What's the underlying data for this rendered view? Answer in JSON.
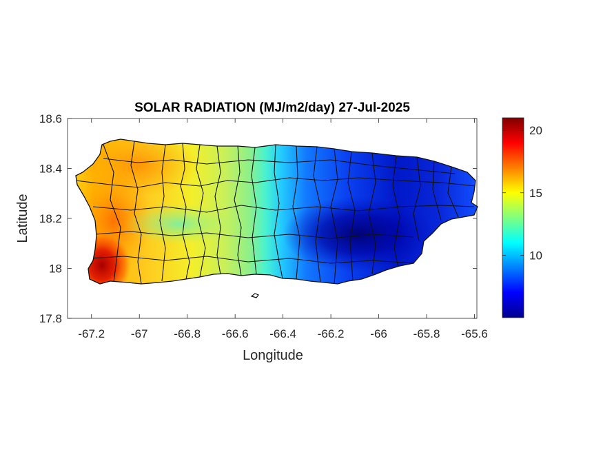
{
  "chart_data": {
    "type": "heatmap",
    "title": "SOLAR RADIATION (MJ/m2/day) 27-Jul-2025",
    "xlabel": "Longitude",
    "ylabel": "Latitude",
    "xlim": [
      -67.3,
      -65.59
    ],
    "ylim": [
      17.8,
      18.6
    ],
    "xticks": [
      -67.2,
      -67,
      -66.8,
      -66.6,
      -66.4,
      -66.2,
      -66,
      -65.8,
      -65.6
    ],
    "xtick_labels": [
      "-67.2",
      "-67",
      "-66.8",
      "-66.6",
      "-66.4",
      "-66.2",
      "-66",
      "-65.8",
      "-65.6"
    ],
    "yticks": [
      17.8,
      18,
      18.2,
      18.4,
      18.6
    ],
    "ytick_labels": [
      "17.8",
      "18",
      "18.2",
      "18.4",
      "18.6"
    ],
    "colorbar": {
      "colormap": "jet",
      "range": [
        5,
        21
      ],
      "ticks": [
        10,
        15,
        20
      ],
      "tick_labels": [
        "10",
        "15",
        "20"
      ],
      "placement": "right"
    },
    "field_samples": [
      {
        "lon": -67.22,
        "lat": 17.97,
        "value": 21
      },
      {
        "lon": -67.19,
        "lat": 18.1,
        "value": 19
      },
      {
        "lon": -67.1,
        "lat": 18.45,
        "value": 17
      },
      {
        "lon": -66.95,
        "lat": 18.4,
        "value": 15.5
      },
      {
        "lon": -66.85,
        "lat": 18.15,
        "value": 14
      },
      {
        "lon": -66.6,
        "lat": 18.3,
        "value": 12.5
      },
      {
        "lon": -66.45,
        "lat": 18.2,
        "value": 9
      },
      {
        "lon": -66.2,
        "lat": 18.2,
        "value": 7.5
      },
      {
        "lon": -66.05,
        "lat": 18.1,
        "value": 5.5
      },
      {
        "lon": -65.85,
        "lat": 18.25,
        "value": 7
      }
    ],
    "grid": false
  }
}
